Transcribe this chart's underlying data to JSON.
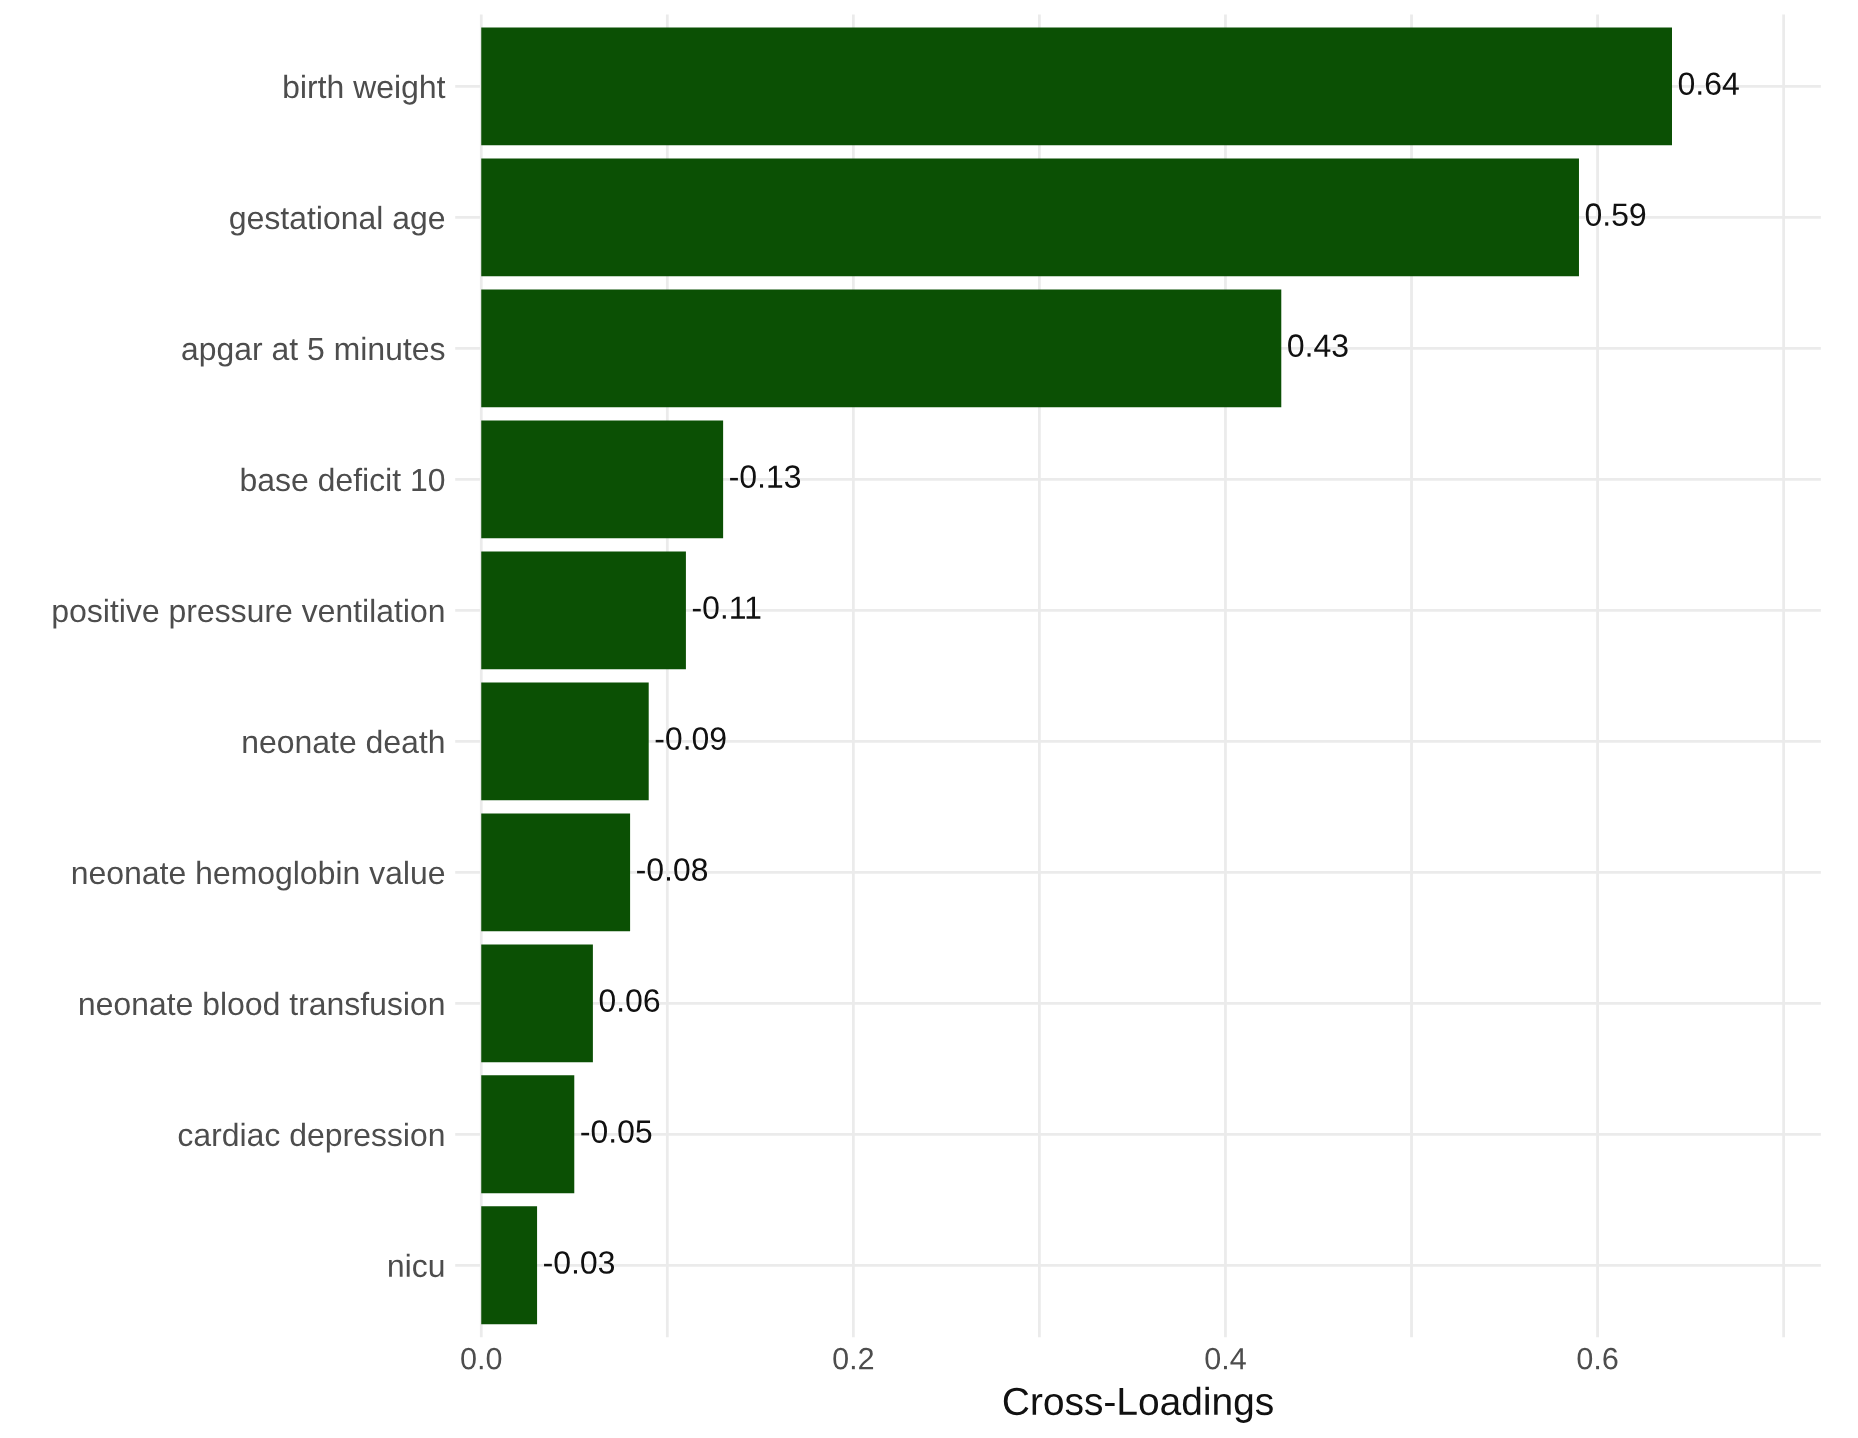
{
  "chart_data": {
    "type": "bar",
    "orientation": "horizontal",
    "xlabel": "Cross-Loadings",
    "categories": [
      "birth weight",
      "gestational age",
      "apgar at 5 minutes",
      "base deficit 10",
      "positive pressure ventilation",
      "neonate death",
      "neonate hemoglobin value",
      "neonate blood transfusion",
      "cardiac depression",
      "nicu"
    ],
    "values": [
      0.64,
      0.59,
      0.43,
      0.13,
      0.11,
      0.09,
      0.08,
      0.06,
      0.05,
      0.03
    ],
    "annotations": [
      {
        "text": "0.64",
        "x": 0.64,
        "y": "birth weight"
      },
      {
        "text": "0.59",
        "x": 0.59,
        "y": "gestational age"
      },
      {
        "text": "0.43",
        "x": 0.43,
        "y": "apgar at 5 minutes"
      },
      {
        "text": "-0.13",
        "x": 0.13,
        "y": "base deficit 10"
      },
      {
        "text": "-0.11",
        "x": 0.11,
        "y": "positive pressure ventilation"
      },
      {
        "text": "-0.09",
        "x": 0.09,
        "y": "neonate death"
      },
      {
        "text": "-0.08",
        "x": 0.08,
        "y": "neonate hemoglobin value"
      },
      {
        "text": "0.06",
        "x": 0.06,
        "y": "neonate blood transfusion"
      },
      {
        "text": "-0.05",
        "x": 0.05,
        "y": "cardiac depression"
      },
      {
        "text": "-0.03",
        "x": 0.03,
        "y": "nicu"
      }
    ],
    "color": "#0b5004",
    "xlim": [
      -0.014,
      0.72
    ],
    "xticks": [
      {
        "value": 0.0,
        "label": "0.0"
      },
      {
        "value": 0.1,
        "label": null
      },
      {
        "value": 0.2,
        "label": "0.2"
      },
      {
        "value": 0.3,
        "label": null
      },
      {
        "value": 0.4,
        "label": "0.4"
      },
      {
        "value": 0.5,
        "label": null
      },
      {
        "value": 0.6,
        "label": "0.6"
      },
      {
        "value": 0.7,
        "label": null
      }
    ],
    "grid": true
  }
}
